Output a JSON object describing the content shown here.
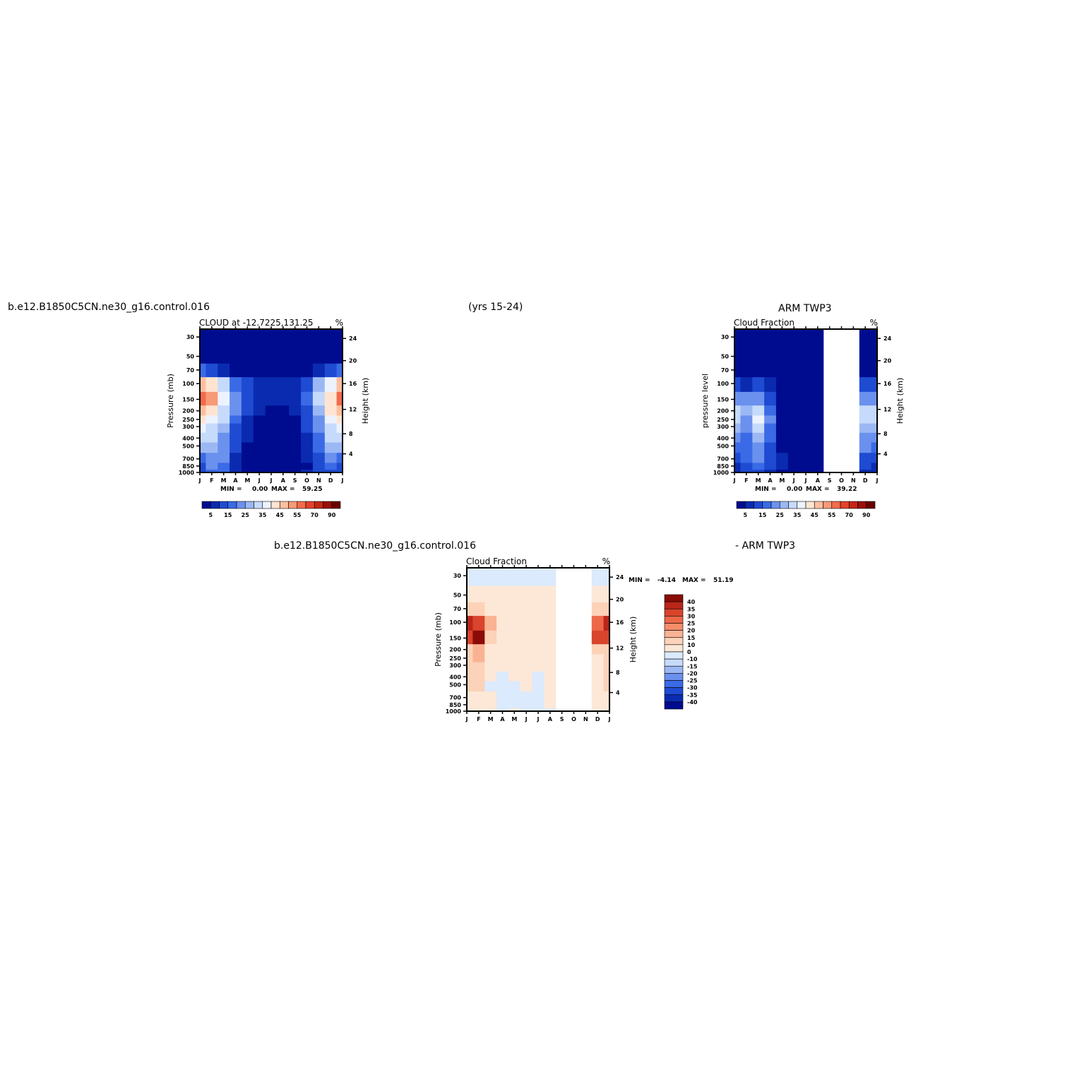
{
  "header": {
    "case_left": "b.e12.B1850C5CN.ne30_g16.control.016",
    "years": "(yrs 15-24)",
    "obs_right": "ARM TWP3",
    "case_bottom": "b.e12.B1850C5CN.ne30_g16.control.016",
    "obs_bottom": "- ARM TWP3"
  },
  "colors": {
    "abs_scale": [
      "#000c8f",
      "#0a2bb0",
      "#1e4bd2",
      "#3a6ae6",
      "#6b91ee",
      "#9cb8f4",
      "#c6dafb",
      "#ecf3ff",
      "#ffe4d2",
      "#fcc0a0",
      "#f89a76",
      "#f26b4c",
      "#e2432a",
      "#c52614",
      "#9a0f08",
      "#6b0000"
    ],
    "diff_scale": [
      "#000c8f",
      "#0a2bb0",
      "#1e4bd2",
      "#3a6ae6",
      "#6b91ee",
      "#9cb8f4",
      "#c6dafb",
      "#dbeafc",
      "#fde8d8",
      "#fcd2b8",
      "#f9b393",
      "#f58d6a",
      "#ec6848",
      "#d9442c",
      "#b9261a",
      "#8a0c06"
    ],
    "missing": "#ffffff"
  },
  "chart_data": [
    {
      "type": "heatmap",
      "title": "CLOUD at -12.7225,131.25",
      "units": "%",
      "ylabel": "Pressure (mb)",
      "y2label": "Height (km)",
      "stats": {
        "min_label": "MIN =",
        "min": "0.00",
        "max_label": "MAX =",
        "max": "59.25"
      },
      "colorbar_ticks": [
        "5",
        "15",
        "25",
        "35",
        "45",
        "55",
        "70",
        "90"
      ],
      "x": [
        "J",
        "F",
        "M",
        "A",
        "M",
        "J",
        "J",
        "A",
        "S",
        "O",
        "N",
        "D",
        "J"
      ],
      "y": [
        1000,
        850,
        700,
        500,
        400,
        300,
        250,
        200,
        150,
        100,
        70,
        50,
        30
      ],
      "ytick_labels": [
        "30",
        "50",
        "70",
        "100",
        "150",
        "200",
        "250",
        "300",
        "400",
        "500",
        "700",
        "850",
        "1000"
      ],
      "y2tick_labels": [
        "24",
        "20",
        "16",
        "12",
        "8",
        "4"
      ],
      "values": [
        [
          12,
          18,
          15,
          6,
          3,
          2,
          2,
          2,
          3,
          5,
          10,
          14,
          12
        ],
        [
          14,
          20,
          18,
          8,
          3,
          2,
          1,
          1,
          2,
          4,
          12,
          18,
          14
        ],
        [
          18,
          22,
          20,
          8,
          3,
          2,
          1,
          1,
          2,
          5,
          14,
          20,
          18
        ],
        [
          28,
          26,
          22,
          10,
          4,
          2,
          1,
          1,
          2,
          6,
          15,
          26,
          28
        ],
        [
          32,
          30,
          24,
          12,
          5,
          2,
          1,
          1,
          2,
          8,
          18,
          30,
          32
        ],
        [
          36,
          34,
          28,
          14,
          6,
          3,
          2,
          2,
          3,
          10,
          20,
          34,
          36
        ],
        [
          40,
          38,
          30,
          16,
          8,
          3,
          2,
          2,
          4,
          12,
          22,
          36,
          40
        ],
        [
          48,
          44,
          34,
          20,
          10,
          5,
          4,
          4,
          6,
          14,
          26,
          40,
          48
        ],
        [
          58,
          52,
          38,
          22,
          12,
          8,
          7,
          7,
          9,
          18,
          30,
          44,
          58
        ],
        [
          45,
          40,
          30,
          18,
          10,
          8,
          6,
          6,
          8,
          14,
          26,
          38,
          45
        ],
        [
          15,
          12,
          8,
          4,
          2,
          1,
          1,
          1,
          1,
          3,
          8,
          14,
          15
        ],
        [
          2,
          1,
          1,
          1,
          1,
          1,
          1,
          1,
          1,
          1,
          1,
          2,
          2
        ],
        [
          1,
          1,
          1,
          1,
          1,
          1,
          1,
          1,
          1,
          1,
          1,
          1,
          1
        ]
      ],
      "levels": [
        5,
        10,
        15,
        20,
        25,
        30,
        35,
        40,
        45,
        50,
        55,
        60,
        70,
        80,
        90
      ]
    },
    {
      "type": "heatmap",
      "title": "Cloud Fraction",
      "units": "%",
      "ylabel": "pressure level",
      "y2label": "Height (km)",
      "stats": {
        "min_label": "MIN =",
        "min": "0.00",
        "max_label": "MAX =",
        "max": "39.22"
      },
      "colorbar_ticks": [
        "5",
        "15",
        "25",
        "35",
        "45",
        "55",
        "70",
        "90"
      ],
      "x": [
        "J",
        "F",
        "M",
        "A",
        "M",
        "J",
        "J",
        "A",
        "S",
        "O",
        "N",
        "D",
        "J"
      ],
      "y": [
        1000,
        850,
        700,
        500,
        400,
        300,
        250,
        200,
        150,
        100,
        70,
        50,
        30
      ],
      "ytick_labels": [
        "30",
        "50",
        "70",
        "100",
        "150",
        "200",
        "250",
        "300",
        "400",
        "500",
        "700",
        "850",
        "1000"
      ],
      "y2tick_labels": [
        "24",
        "20",
        "16",
        "12",
        "8",
        "4"
      ],
      "values": [
        [
          6,
          10,
          12,
          8,
          4,
          4,
          3,
          3,
          null,
          null,
          null,
          8,
          6
        ],
        [
          8,
          12,
          16,
          10,
          5,
          3,
          3,
          3,
          null,
          null,
          null,
          10,
          8
        ],
        [
          12,
          16,
          20,
          12,
          5,
          3,
          2,
          2,
          null,
          null,
          null,
          14,
          12
        ],
        [
          18,
          16,
          24,
          14,
          4,
          2,
          2,
          2,
          null,
          null,
          null,
          20,
          18
        ],
        [
          22,
          18,
          28,
          16,
          4,
          2,
          2,
          2,
          null,
          null,
          null,
          24,
          22
        ],
        [
          26,
          20,
          32,
          18,
          4,
          2,
          2,
          2,
          null,
          null,
          null,
          28,
          26
        ],
        [
          30,
          22,
          36,
          20,
          4,
          2,
          2,
          2,
          null,
          null,
          null,
          30,
          30
        ],
        [
          34,
          26,
          34,
          18,
          4,
          2,
          2,
          2,
          null,
          null,
          null,
          30,
          34
        ],
        [
          24,
          20,
          22,
          14,
          4,
          2,
          2,
          2,
          null,
          null,
          null,
          24,
          24
        ],
        [
          10,
          8,
          10,
          6,
          2,
          1,
          1,
          1,
          null,
          null,
          null,
          12,
          10
        ],
        [
          2,
          1,
          1,
          1,
          1,
          1,
          1,
          1,
          null,
          null,
          null,
          2,
          2
        ],
        [
          1,
          1,
          1,
          1,
          1,
          1,
          1,
          1,
          null,
          null,
          null,
          1,
          1
        ],
        [
          1,
          1,
          1,
          1,
          1,
          1,
          1,
          1,
          null,
          null,
          null,
          1,
          1
        ]
      ],
      "levels": [
        5,
        10,
        15,
        20,
        25,
        30,
        35,
        40,
        45,
        50,
        55,
        60,
        70,
        80,
        90
      ]
    },
    {
      "type": "heatmap",
      "title": "Cloud Fraction",
      "units": "%",
      "ylabel": "Pressure (mb)",
      "y2label": "Height (km)",
      "stats": {
        "min_label": "MIN =",
        "min": "-4.14",
        "max_label": "MAX =",
        "max": "51.19"
      },
      "colorbar_ticks": [
        "40",
        "35",
        "30",
        "25",
        "20",
        "15",
        "10",
        "0",
        "-10",
        "-15",
        "-20",
        "-25",
        "-30",
        "-35",
        "-40"
      ],
      "x": [
        "J",
        "F",
        "M",
        "A",
        "M",
        "J",
        "J",
        "A",
        "S",
        "O",
        "N",
        "D",
        "J"
      ],
      "y": [
        1000,
        850,
        700,
        500,
        400,
        300,
        250,
        200,
        150,
        100,
        70,
        50,
        30
      ],
      "ytick_labels": [
        "30",
        "50",
        "70",
        "100",
        "150",
        "200",
        "250",
        "300",
        "400",
        "500",
        "700",
        "850",
        "1000"
      ],
      "y2tick_labels": [
        "24",
        "20",
        "16",
        "12",
        "8",
        "4"
      ],
      "values": [
        [
          6,
          8,
          3,
          -1,
          0,
          -1,
          -1,
          -1,
          null,
          null,
          null,
          4,
          6
        ],
        [
          6,
          8,
          2,
          -1,
          -1,
          -1,
          -1,
          0,
          null,
          null,
          null,
          4,
          6
        ],
        [
          6,
          6,
          0,
          -2,
          -2,
          -1,
          -2,
          0,
          null,
          null,
          null,
          6,
          6
        ],
        [
          10,
          10,
          -1,
          -2,
          -1,
          0,
          -1,
          0,
          null,
          null,
          null,
          6,
          10
        ],
        [
          10,
          12,
          0,
          -2,
          0,
          0,
          -2,
          0,
          null,
          null,
          null,
          6,
          10
        ],
        [
          10,
          14,
          2,
          0,
          0,
          0,
          0,
          0,
          null,
          null,
          null,
          6,
          10
        ],
        [
          10,
          16,
          2,
          0,
          0,
          1,
          0,
          0,
          null,
          null,
          null,
          6,
          10
        ],
        [
          14,
          18,
          4,
          2,
          2,
          2,
          2,
          2,
          null,
          null,
          null,
          10,
          14
        ],
        [
          34,
          50,
          14,
          4,
          4,
          4,
          4,
          4,
          null,
          null,
          null,
          30,
          34
        ],
        [
          35,
          32,
          16,
          6,
          4,
          4,
          4,
          4,
          null,
          null,
          null,
          26,
          35
        ],
        [
          13,
          11,
          6,
          3,
          1,
          1,
          1,
          1,
          null,
          null,
          null,
          10,
          13
        ],
        [
          1,
          1,
          1,
          1,
          1,
          1,
          1,
          1,
          null,
          null,
          null,
          1,
          1
        ],
        [
          -1,
          -1,
          -1,
          -1,
          -1,
          -1,
          -1,
          -1,
          null,
          null,
          null,
          -1,
          -1
        ]
      ],
      "levels": [
        -40,
        -35,
        -30,
        -25,
        -20,
        -15,
        -10,
        0,
        10,
        15,
        20,
        25,
        30,
        35,
        40
      ]
    }
  ]
}
